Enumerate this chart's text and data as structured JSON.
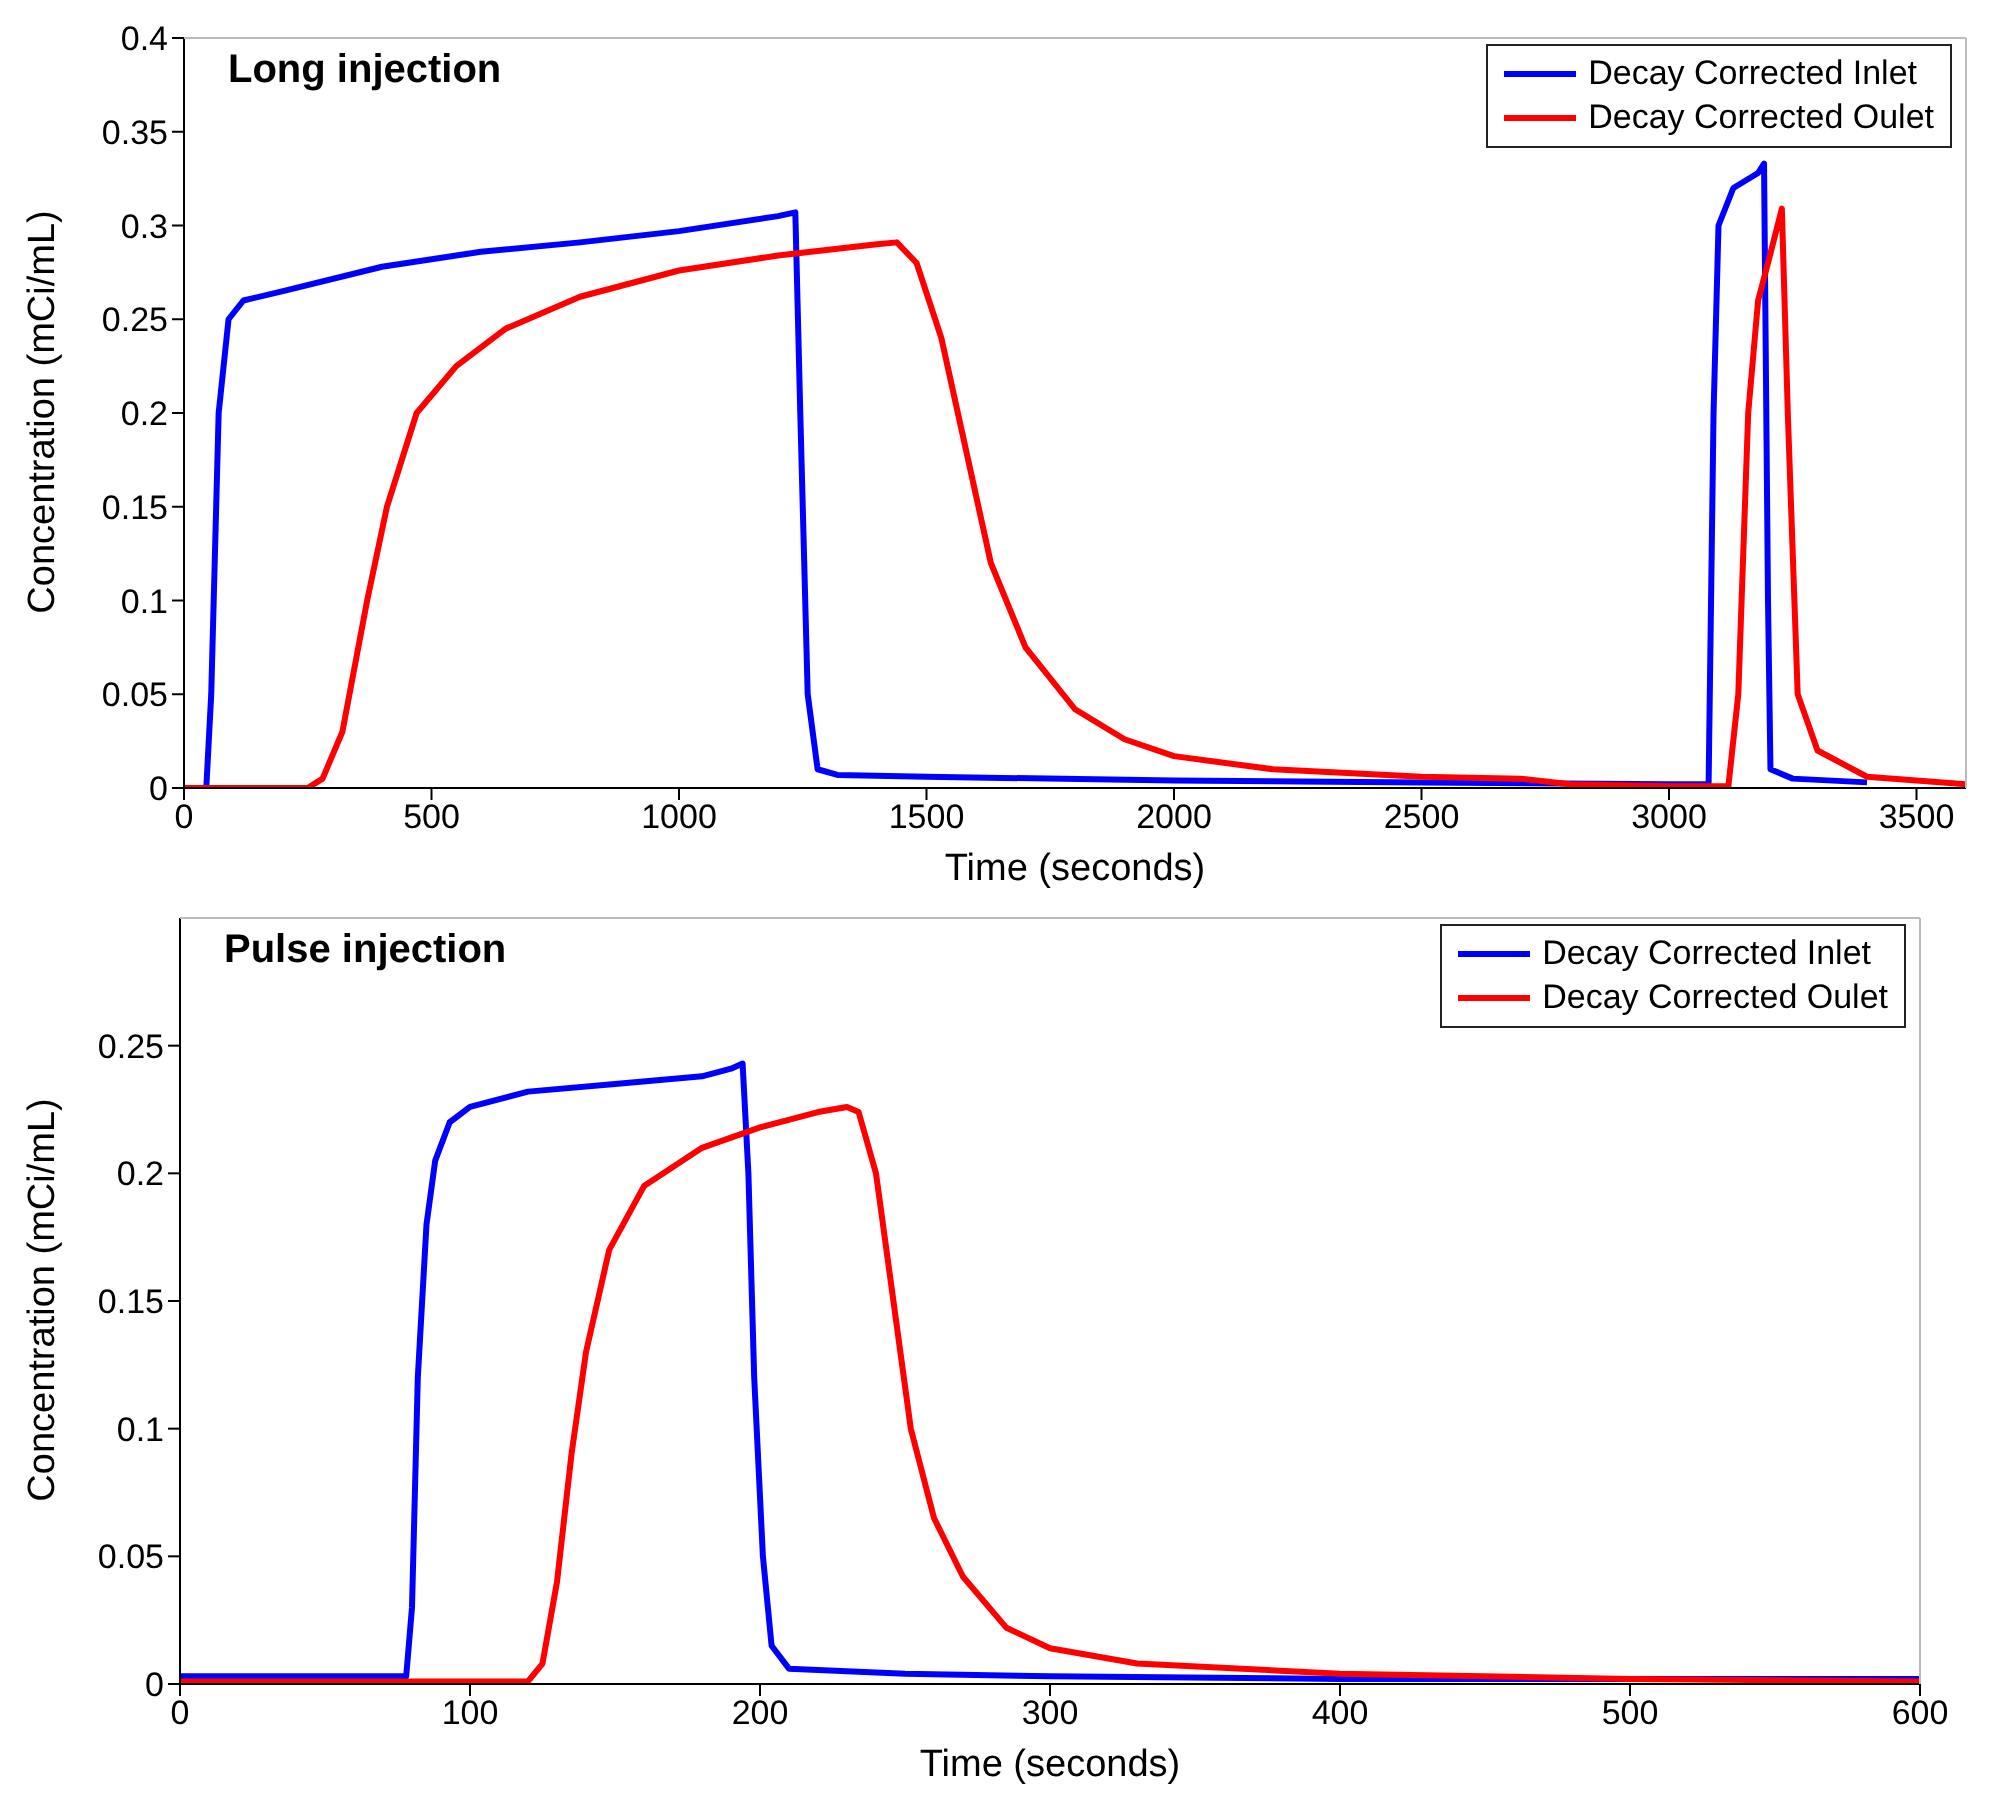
{
  "chart_data": [
    {
      "type": "line",
      "title": "Long injection",
      "xlabel": "Time (seconds)",
      "ylabel": "Concentration (mCi/mL)",
      "xlim": [
        0,
        3600
      ],
      "xticks": [
        0,
        500,
        1000,
        1500,
        2000,
        2500,
        3000,
        3500
      ],
      "ylim": [
        0,
        0.4
      ],
      "yticks": [
        0,
        0.05,
        0.1,
        0.15,
        0.2,
        0.25,
        0.3,
        0.35,
        0.4
      ],
      "grid": false,
      "legend": "top right",
      "marker": "none",
      "line_style": "solid",
      "series": [
        {
          "name": "Decay Corrected Inlet",
          "color": "#0000ff",
          "x": [
            0,
            45,
            55,
            70,
            90,
            120,
            200,
            400,
            600,
            800,
            1000,
            1200,
            1235,
            1245,
            1260,
            1280,
            1320,
            1500,
            2000,
            2500,
            3000,
            3080,
            3090,
            3100,
            3130,
            3180,
            3192,
            3200,
            3205,
            3250,
            3400
          ],
          "values": [
            0,
            0,
            0.05,
            0.2,
            0.25,
            0.26,
            0.265,
            0.278,
            0.286,
            0.291,
            0.297,
            0.305,
            0.307,
            0.2,
            0.05,
            0.01,
            0.007,
            0.006,
            0.004,
            0.003,
            0.002,
            0.002,
            0.2,
            0.3,
            0.32,
            0.328,
            0.333,
            0.1,
            0.01,
            0.005,
            0.003
          ]
        },
        {
          "name": "Decay Corrected Oulet",
          "color": "#ff0000",
          "x": [
            0,
            250,
            280,
            320,
            370,
            410,
            470,
            550,
            650,
            800,
            1000,
            1200,
            1400,
            1440,
            1480,
            1530,
            1580,
            1630,
            1700,
            1800,
            1900,
            2000,
            2200,
            2500,
            2700,
            2800,
            3000,
            3120,
            3140,
            3160,
            3180,
            3200,
            3228,
            3240,
            3260,
            3300,
            3400,
            3600
          ],
          "values": [
            0,
            0,
            0.005,
            0.03,
            0.1,
            0.15,
            0.2,
            0.225,
            0.245,
            0.262,
            0.276,
            0.284,
            0.29,
            0.291,
            0.28,
            0.24,
            0.18,
            0.12,
            0.075,
            0.042,
            0.026,
            0.017,
            0.01,
            0.006,
            0.005,
            0.002,
            0.001,
            0.001,
            0.05,
            0.2,
            0.26,
            0.28,
            0.309,
            0.2,
            0.05,
            0.02,
            0.006,
            0.002
          ]
        }
      ]
    },
    {
      "type": "line",
      "title": "Pulse injection",
      "xlabel": "Time (seconds)",
      "ylabel": "Concentration (mCi/mL)",
      "xlim": [
        0,
        600
      ],
      "xticks": [
        0,
        100,
        200,
        300,
        400,
        500,
        600
      ],
      "ylim": [
        0,
        0.3
      ],
      "yticks": [
        0,
        0.05,
        0.1,
        0.15,
        0.2,
        0.25
      ],
      "grid": false,
      "legend": "top right",
      "marker": "none",
      "line_style": "solid",
      "series": [
        {
          "name": "Decay Corrected Inlet",
          "color": "#0000ff",
          "x": [
            0,
            78,
            80,
            82,
            85,
            88,
            93,
            100,
            120,
            150,
            180,
            190,
            194,
            196,
            198,
            201,
            204,
            210,
            250,
            300,
            400,
            600
          ],
          "values": [
            0.003,
            0.003,
            0.03,
            0.12,
            0.18,
            0.205,
            0.22,
            0.226,
            0.232,
            0.235,
            0.238,
            0.241,
            0.243,
            0.2,
            0.12,
            0.05,
            0.015,
            0.006,
            0.004,
            0.003,
            0.002,
            0.002
          ]
        },
        {
          "name": "Decay Corrected Oulet",
          "color": "#ff0000",
          "x": [
            0,
            120,
            125,
            130,
            135,
            140,
            148,
            160,
            180,
            200,
            220,
            230,
            234,
            240,
            246,
            252,
            260,
            270,
            285,
            300,
            330,
            400,
            500,
            600
          ],
          "values": [
            0.001,
            0.001,
            0.008,
            0.04,
            0.09,
            0.13,
            0.17,
            0.195,
            0.21,
            0.218,
            0.224,
            0.226,
            0.224,
            0.2,
            0.15,
            0.1,
            0.065,
            0.042,
            0.022,
            0.014,
            0.008,
            0.004,
            0.002,
            0.001
          ]
        }
      ]
    }
  ]
}
